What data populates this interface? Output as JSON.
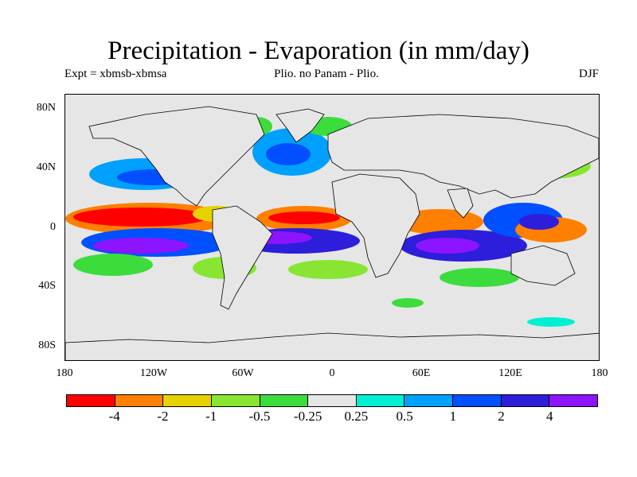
{
  "title": "Precipitation - Evaporation (in mm/day)",
  "subtitle_left": "Expt = xbmsb-xbmsa",
  "subtitle_center": "Plio. no Panam - Plio.",
  "subtitle_right": "DJF",
  "y_ticks": [
    "80N",
    "40N",
    "0",
    "40S",
    "80S"
  ],
  "x_ticks": [
    "180",
    "120W",
    "60W",
    "0",
    "60E",
    "120E",
    "180"
  ],
  "colorbar": {
    "colors": [
      "#ff0000",
      "#ff7f00",
      "#e6d200",
      "#88e632",
      "#3cdc3c",
      "#e6e6e6",
      "#00f0d2",
      "#00a0ff",
      "#0050ff",
      "#2d1edc",
      "#8c14ff"
    ],
    "labels": [
      "-4",
      "-2",
      "-1",
      "-0.5",
      "-0.25",
      "0.25",
      "0.5",
      "1",
      "2",
      "4"
    ]
  },
  "map": {
    "background_color": "#e6e6e6",
    "coastline_color": "#000000"
  }
}
